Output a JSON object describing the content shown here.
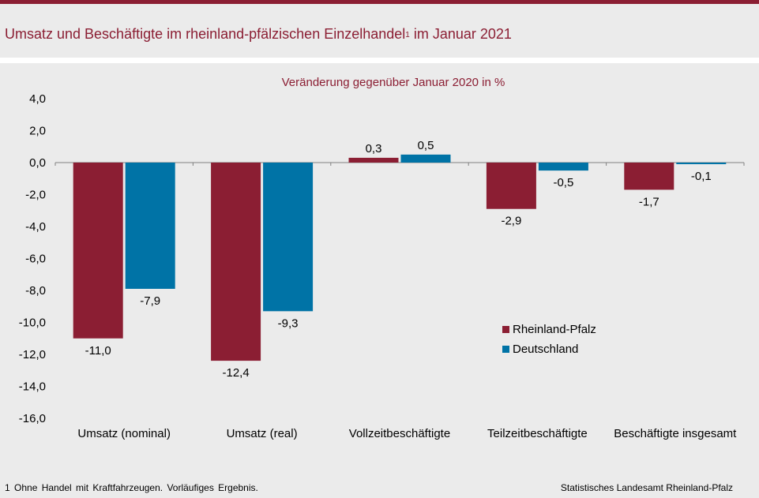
{
  "header": {
    "title": "Umsatz und Beschäftigte im rheinland-pfälzischen Einzelhandel",
    "title_sup": "1",
    "title_suffix": " im Januar 2021"
  },
  "colors": {
    "rheinland_pfalz": "#8b1e33",
    "deutschland": "#0073a6",
    "background": "#ebebeb"
  },
  "footer": {
    "footnote": "1 Ohne Handel mit Kraftfahrzeugen. Vorläufiges Ergebnis.",
    "source": "Statistisches Landesamt Rheinland-Pfalz"
  },
  "chart_data": {
    "type": "bar",
    "subtitle": "Veränderung gegenüber Januar 2020 in %",
    "categories": [
      "Umsatz (nominal)",
      "Umsatz (real)",
      "Vollzeitbeschäftigte",
      "Teilzeitbeschäftigte",
      "Beschäftigte insgesamt"
    ],
    "series": [
      {
        "name": "Rheinland-Pfalz",
        "values": [
          -11.0,
          -12.4,
          0.3,
          -2.9,
          -1.7
        ],
        "labels": [
          "-11,0",
          "-12,4",
          "0,3",
          "-2,9",
          "-1,7"
        ]
      },
      {
        "name": "Deutschland",
        "values": [
          -7.9,
          -9.3,
          0.5,
          -0.5,
          -0.1
        ],
        "labels": [
          "-7,9",
          "-9,3",
          "0,5",
          "-0,5",
          "-0,1"
        ]
      }
    ],
    "ylim": [
      -16,
      4
    ],
    "yticks": [
      4,
      2,
      0,
      -2,
      -4,
      -6,
      -8,
      -10,
      -12,
      -14,
      -16
    ],
    "ytick_labels": [
      "4,0",
      "2,0",
      "0,0",
      "-2,0",
      "-4,0",
      "-6,0",
      "-8,0",
      "-10,0",
      "-12,0",
      "-14,0",
      "-16,0"
    ],
    "legend_position": "right-center",
    "grid": false
  }
}
